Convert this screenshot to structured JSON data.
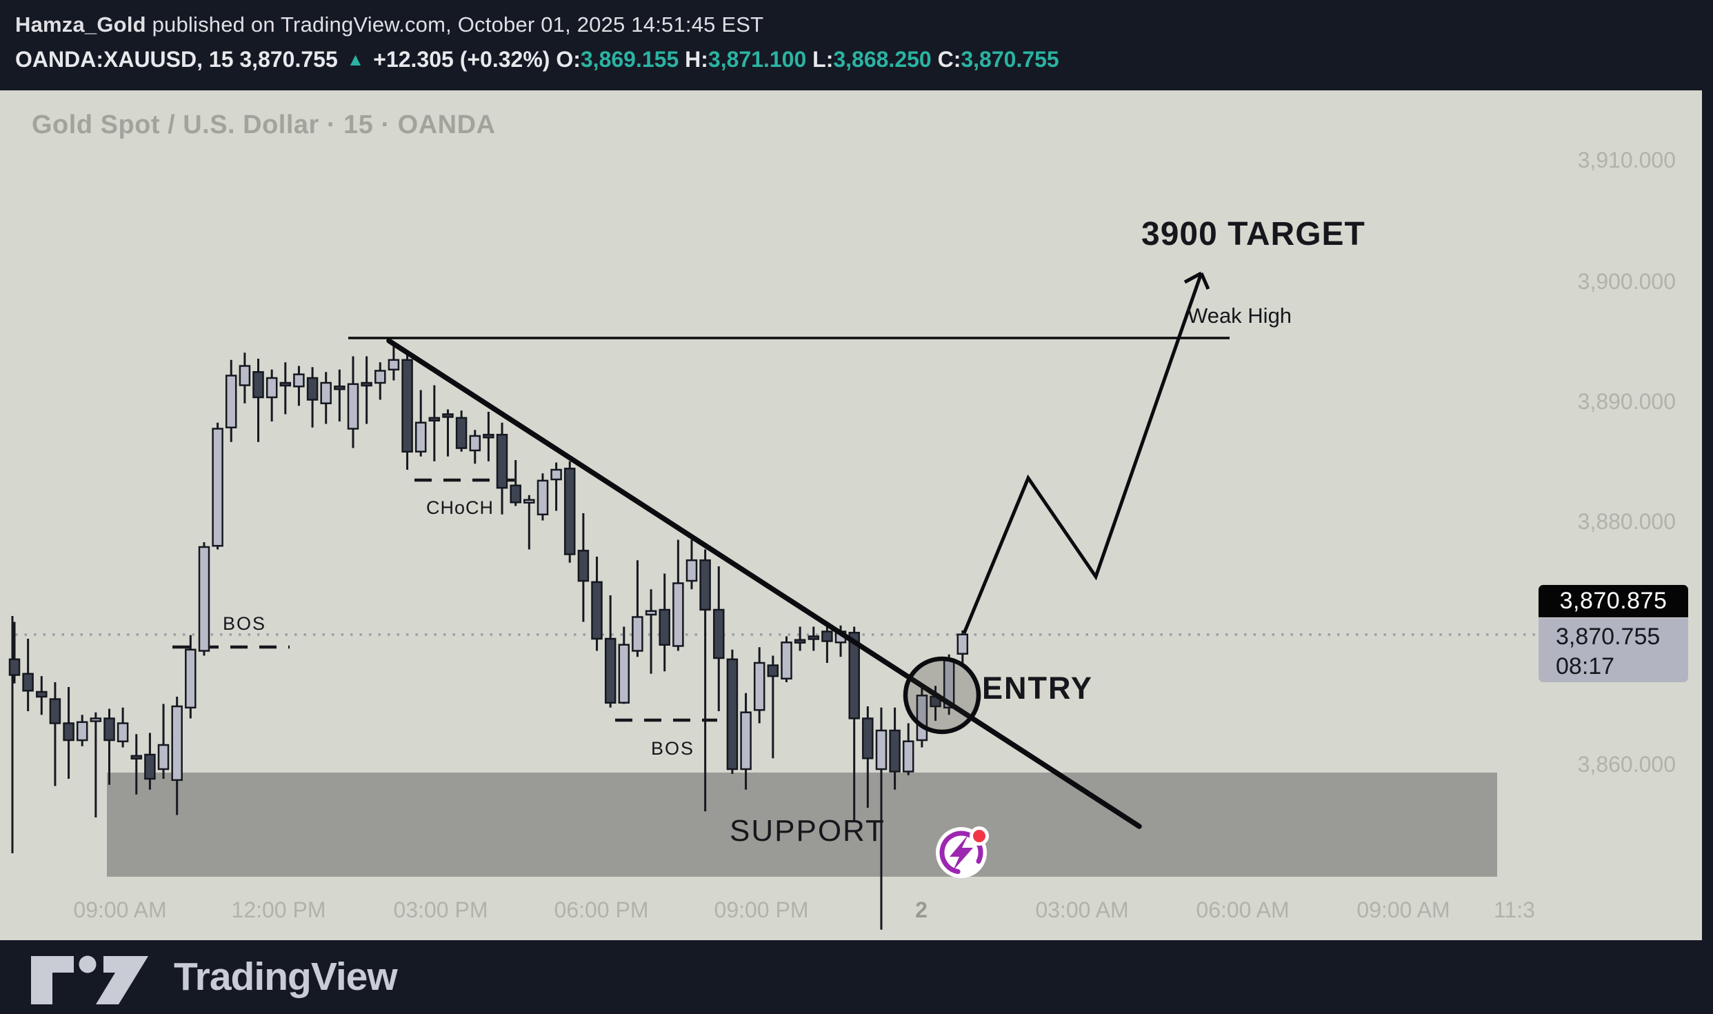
{
  "header": {
    "author": "Hamza_Gold",
    "published_text": " published on TradingView.com, October 01, 2025 14:51:45 EST",
    "symbol": "OANDA:XAUUSD, 15",
    "last_price": "3,870.755",
    "up_arrow": "▲",
    "change": "+12.305 (+0.32%)",
    "o_label": "O:",
    "o_value": "3,869.155",
    "h_label": "H:",
    "h_value": "3,871.100",
    "l_label": "L:",
    "l_value": "3,868.250",
    "c_label": "C:",
    "c_value": "3,870.755"
  },
  "chart": {
    "watermark": "Gold Spot / U.S. Dollar · 15 · OANDA",
    "price_axis": {
      "p0": "3,910.000",
      "p1": "3,900.000",
      "p2": "3,890.000",
      "p3": "3,880.000",
      "p4": "3,860.000"
    },
    "time_axis": {
      "t0": "09:00 AM",
      "t1": "12:00 PM",
      "t2": "03:00 PM",
      "t3": "06:00 PM",
      "t4": "09:00 PM",
      "t5": "2",
      "t6": "03:00 AM",
      "t7": "06:00 AM",
      "t8": "09:00 AM",
      "t9": "11:3"
    },
    "last_price_box": "3,870.875",
    "countdown_price": "3,870.755",
    "countdown_time": "08:17",
    "annotations": {
      "target": "3900 TARGET",
      "weak_high": "Weak High",
      "entry": "ENTRY",
      "support": "SUPPORT",
      "bos1": "BOS",
      "bos2": "BOS",
      "choch": "CHoCH"
    }
  },
  "footer": {
    "brand": "TradingView"
  },
  "colors": {
    "accent_teal": "#2bb3a2",
    "bull_fill": "#b9bcc8",
    "bear_fill": "#3f4452",
    "outline": "#15181f",
    "chart_bg": "#d6d7cf",
    "panel_bg": "#151924",
    "support_zone": "#9a9b96",
    "logo_purple": "#9c27b0",
    "logo_red": "#f23645"
  },
  "chart_data": {
    "type": "candlestick",
    "title": "Gold Spot / U.S. Dollar · 15 · OANDA",
    "symbol": "OANDA:XAUUSD",
    "timeframe_minutes": 15,
    "y_ticks": [
      3910,
      3900,
      3890,
      3880,
      3870,
      3860
    ],
    "x_ticks": [
      "09:00 AM",
      "12:00 PM",
      "03:00 PM",
      "06:00 PM",
      "09:00 PM",
      "2",
      "03:00 AM",
      "06:00 AM",
      "09:00 AM",
      "11:3"
    ],
    "ylim_visible": [
      3846,
      3912
    ],
    "current_price": 3870.755,
    "last_bar_price": 3870.875,
    "bar_countdown": "08:17",
    "support_zone_price": [
      3851.0,
      3859.5
    ],
    "weak_high_price": 3895.0,
    "target_price": 3900,
    "candles_ohlc": [
      [
        3868.7,
        3871.8,
        3866.7,
        3867.4
      ],
      [
        3867.5,
        3870.4,
        3864.4,
        3866.1
      ],
      [
        3866.0,
        3867.3,
        3864.1,
        3865.6
      ],
      [
        3865.4,
        3866.8,
        3858.2,
        3863.4
      ],
      [
        3863.4,
        3866.4,
        3858.8,
        3862.0
      ],
      [
        3862.0,
        3864.1,
        3861.5,
        3863.5
      ],
      [
        3863.6,
        3864.3,
        3855.6,
        3863.8
      ],
      [
        3863.8,
        3864.6,
        3858.3,
        3862.0
      ],
      [
        3861.9,
        3864.7,
        3861.4,
        3863.4
      ],
      [
        3860.7,
        3862.5,
        3857.5,
        3860.5
      ],
      [
        3860.8,
        3862.6,
        3857.9,
        3858.8
      ],
      [
        3859.6,
        3865.0,
        3858.8,
        3861.6
      ],
      [
        3858.7,
        3865.6,
        3855.8,
        3864.8
      ],
      [
        3864.7,
        3870.7,
        3863.8,
        3869.5
      ],
      [
        3869.4,
        3878.4,
        3869.0,
        3878.0
      ],
      [
        3878.1,
        3888.3,
        3877.8,
        3887.8
      ],
      [
        3887.9,
        3893.5,
        3886.7,
        3892.2
      ],
      [
        3891.4,
        3894.1,
        3889.9,
        3893.0
      ],
      [
        3892.5,
        3893.6,
        3886.7,
        3890.4
      ],
      [
        3890.4,
        3892.7,
        3888.4,
        3892.0
      ],
      [
        3891.6,
        3893.3,
        3889.0,
        3891.4
      ],
      [
        3891.3,
        3893.0,
        3889.7,
        3892.3
      ],
      [
        3892.0,
        3892.9,
        3887.9,
        3890.2
      ],
      [
        3889.9,
        3892.5,
        3888.2,
        3891.6
      ],
      [
        3891.3,
        3892.7,
        3888.4,
        3891.2
      ],
      [
        3887.8,
        3893.8,
        3886.2,
        3891.5
      ],
      [
        3891.6,
        3893.8,
        3888.2,
        3891.5
      ],
      [
        3891.6,
        3893.3,
        3890.2,
        3892.6
      ],
      [
        3892.7,
        3894.9,
        3891.8,
        3893.5
      ],
      [
        3893.5,
        3894.1,
        3884.4,
        3885.9
      ],
      [
        3885.9,
        3891.0,
        3885.5,
        3888.3
      ],
      [
        3888.7,
        3891.4,
        3885.1,
        3888.6
      ],
      [
        3889.0,
        3889.4,
        3885.5,
        3888.9
      ],
      [
        3888.7,
        3889.3,
        3885.9,
        3886.2
      ],
      [
        3886.0,
        3887.7,
        3884.9,
        3887.2
      ],
      [
        3887.3,
        3889.2,
        3885.1,
        3887.2
      ],
      [
        3887.3,
        3888.3,
        3880.7,
        3882.9
      ],
      [
        3883.1,
        3885.2,
        3881.4,
        3881.7
      ],
      [
        3881.9,
        3882.3,
        3877.8,
        3881.9
      ],
      [
        3880.7,
        3884.1,
        3880.2,
        3883.5
      ],
      [
        3883.6,
        3885.0,
        3881.0,
        3884.4
      ],
      [
        3884.5,
        3885.1,
        3876.7,
        3877.4
      ],
      [
        3877.7,
        3880.8,
        3871.8,
        3875.2
      ],
      [
        3875.1,
        3877.2,
        3869.4,
        3870.4
      ],
      [
        3870.4,
        3874.0,
        3864.7,
        3865.1
      ],
      [
        3865.1,
        3871.4,
        3865.0,
        3869.9
      ],
      [
        3869.4,
        3876.9,
        3868.9,
        3872.2
      ],
      [
        3872.4,
        3874.5,
        3867.5,
        3872.7
      ],
      [
        3872.8,
        3875.8,
        3867.7,
        3869.9
      ],
      [
        3869.8,
        3878.6,
        3869.4,
        3875.0
      ],
      [
        3875.2,
        3878.6,
        3874.5,
        3876.9
      ],
      [
        3876.9,
        3877.8,
        3856.1,
        3872.8
      ],
      [
        3872.8,
        3876.4,
        3864.4,
        3868.8
      ],
      [
        3868.7,
        3869.5,
        3859.2,
        3859.6
      ],
      [
        3859.6,
        3865.9,
        3857.9,
        3864.3
      ],
      [
        3864.5,
        3869.7,
        3863.4,
        3868.4
      ],
      [
        3868.2,
        3869.0,
        3860.5,
        3867.3
      ],
      [
        3867.1,
        3870.6,
        3866.8,
        3870.1
      ],
      [
        3870.3,
        3871.4,
        3869.4,
        3870.2
      ],
      [
        3870.6,
        3871.4,
        3869.4,
        3870.5
      ],
      [
        3871.0,
        3871.4,
        3868.4,
        3870.2
      ],
      [
        3870.1,
        3871.5,
        3868.9,
        3871.0
      ],
      [
        3870.9,
        3871.4,
        3855.2,
        3863.8
      ],
      [
        3863.8,
        3864.8,
        3856.4,
        3860.5
      ],
      [
        3859.6,
        3864.7,
        3846.3,
        3862.8
      ],
      [
        3862.8,
        3864.7,
        3857.9,
        3859.4
      ],
      [
        3859.4,
        3863.4,
        3859.1,
        3861.9
      ],
      [
        3862.0,
        3866.5,
        3861.4,
        3865.7
      ],
      [
        3865.6,
        3866.5,
        3863.6,
        3864.8
      ],
      [
        3864.7,
        3869.1,
        3864.1,
        3868.7
      ],
      [
        3869.155,
        3871.1,
        3868.25,
        3870.755
      ]
    ]
  }
}
